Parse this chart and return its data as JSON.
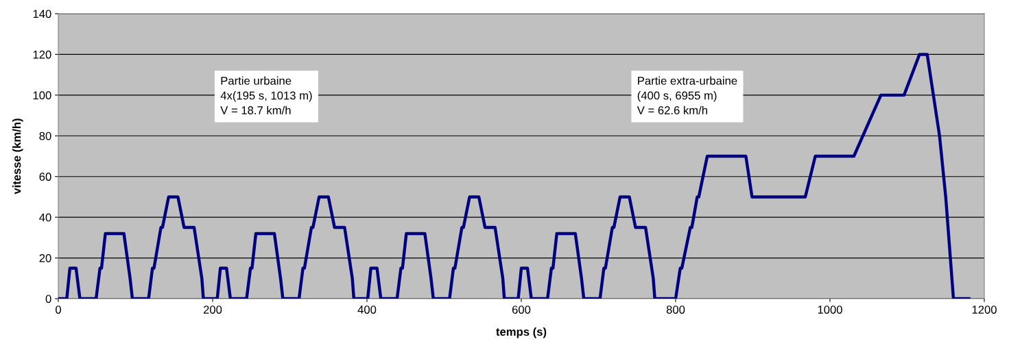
{
  "chart_data": {
    "type": "line",
    "xlabel": "temps (s)",
    "ylabel": "vitesse (km/h)",
    "x": [
      0,
      11,
      15,
      23,
      28,
      49,
      54,
      56,
      61,
      85,
      93,
      96,
      117,
      122,
      124,
      133,
      135,
      143,
      155,
      163,
      176,
      186,
      188,
      195,
      206,
      210,
      218,
      223,
      244,
      249,
      251,
      256,
      280,
      288,
      291,
      312,
      317,
      319,
      328,
      330,
      338,
      350,
      358,
      371,
      381,
      383,
      390,
      401,
      405,
      413,
      418,
      439,
      444,
      446,
      451,
      475,
      483,
      486,
      507,
      512,
      514,
      523,
      525,
      533,
      545,
      553,
      566,
      576,
      578,
      585,
      596,
      600,
      608,
      613,
      634,
      639,
      641,
      646,
      670,
      678,
      681,
      702,
      707,
      709,
      718,
      720,
      728,
      740,
      748,
      761,
      771,
      773,
      780,
      800,
      806,
      808,
      819,
      821,
      828,
      830,
      841,
      891,
      899,
      968,
      981,
      1031,
      1066,
      1096,
      1116,
      1126,
      1142,
      1150,
      1160,
      1180
    ],
    "series": [
      {
        "color": "#000080",
        "values": [
          0,
          0,
          15,
          15,
          0,
          0,
          15,
          15,
          32,
          32,
          10,
          0,
          0,
          15,
          15,
          35,
          35,
          50,
          50,
          35,
          35,
          10,
          0,
          0,
          0,
          15,
          15,
          0,
          0,
          15,
          15,
          32,
          32,
          10,
          0,
          0,
          15,
          15,
          35,
          35,
          50,
          50,
          35,
          35,
          10,
          0,
          0,
          0,
          15,
          15,
          0,
          0,
          15,
          15,
          32,
          32,
          10,
          0,
          0,
          15,
          15,
          35,
          35,
          50,
          50,
          35,
          35,
          10,
          0,
          0,
          0,
          15,
          15,
          0,
          0,
          15,
          15,
          32,
          32,
          10,
          0,
          0,
          15,
          15,
          35,
          35,
          50,
          50,
          35,
          35,
          10,
          0,
          0,
          0,
          15,
          15,
          35,
          35,
          50,
          50,
          70,
          70,
          50,
          50,
          70,
          70,
          100,
          100,
          120,
          120,
          80,
          50,
          0,
          0
        ]
      }
    ],
    "xlim": [
      0,
      1200
    ],
    "xticks": [
      0,
      200,
      400,
      600,
      800,
      1000,
      1200
    ],
    "ylim": [
      0,
      140
    ],
    "yticks": [
      0,
      20,
      40,
      60,
      80,
      100,
      120,
      140
    ],
    "grid": "y",
    "marker": "none",
    "line_style": "solid",
    "legend": false,
    "annotations": [
      "Partie urbaine\n4x(195 s, 1013 m)\nV = 18.7 km/h",
      "Partie extra-urbaine\n(400 s, 6955 m)\nV = 62.6 km/h"
    ]
  }
}
